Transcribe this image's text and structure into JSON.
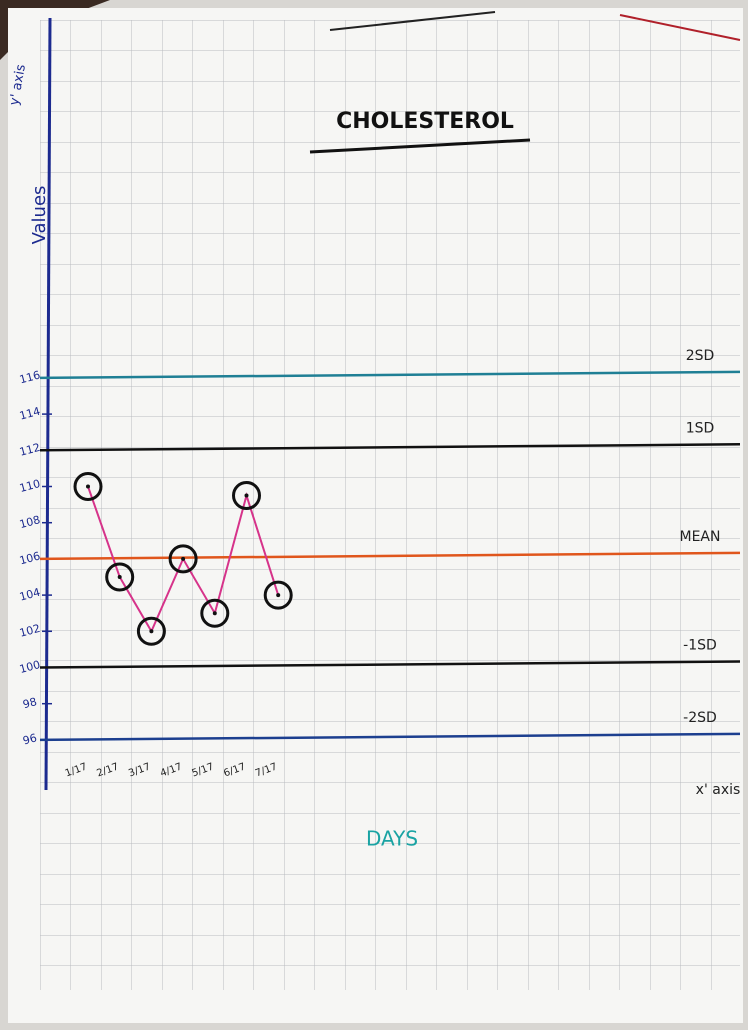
{
  "chart_data": {
    "type": "line",
    "title": "CHOLESTEROL",
    "x_label": "DAYS",
    "y_label": "Values",
    "y_axis_marker": "y' axis",
    "x_axis_marker": "x' axis",
    "categories": [
      "1/17",
      "2/17",
      "3/17",
      "4/17",
      "5/17",
      "6/17",
      "7/17"
    ],
    "values": [
      110,
      105,
      102,
      106,
      103,
      109.5,
      104
    ],
    "color": "#d6338a",
    "ylim": [
      95,
      135
    ],
    "yticks": [
      96,
      98,
      100,
      102,
      104,
      106,
      108,
      110,
      112,
      114,
      116
    ],
    "reference_lines": [
      {
        "label": "2SD",
        "value": 116,
        "color": "#1f7f95"
      },
      {
        "label": "1SD",
        "value": 112,
        "color": "#111111"
      },
      {
        "label": "MEAN",
        "value": 106,
        "color": "#e0561c"
      },
      {
        "label": "-1SD",
        "value": 100,
        "color": "#111111"
      },
      {
        "label": "-2SD",
        "value": 96,
        "color": "#1c3f8f"
      }
    ],
    "grid": true
  }
}
